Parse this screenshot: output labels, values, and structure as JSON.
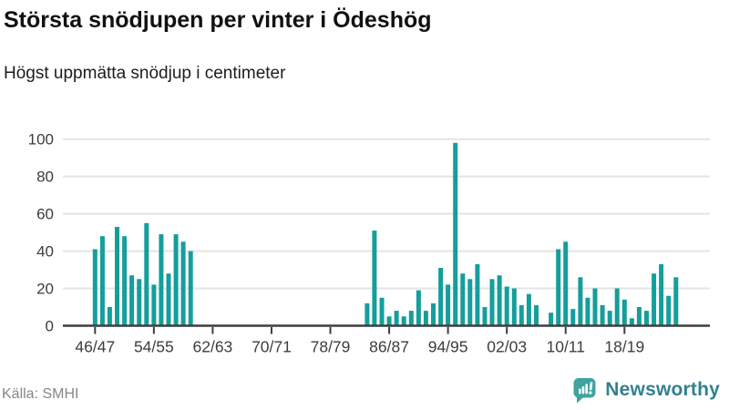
{
  "header": {
    "title": "Största snödjupen per vinter i Ödeshög",
    "subtitle": "Högst uppmätta snödjup i centimeter"
  },
  "footer": {
    "source": "Källa: SMHI",
    "brand": "Newsworthy"
  },
  "icons": {
    "logo_icon": "chart-speech-bubble-icon"
  },
  "colors": {
    "bar": "#149e9c",
    "grid": "#e4e4e4",
    "axis": "#3d3d3d",
    "axis_text": "#3d3d3d",
    "title_text": "#111111",
    "source_text": "#878787",
    "brand_text": "#33808f",
    "logo_icon": "#3fa4a0"
  },
  "chart_data": {
    "type": "bar",
    "title": "Största snödjupen per vinter i Ödeshög",
    "subtitle": "Högst uppmätta snödjup i centimeter",
    "unit": "cm",
    "ylabel": "",
    "xlabel": "",
    "ylim": [
      0,
      100
    ],
    "yticks": [
      0,
      20,
      40,
      60,
      80,
      100
    ],
    "xtick_labels": [
      "46/47",
      "54/55",
      "62/63",
      "70/71",
      "78/79",
      "86/87",
      "94/95",
      "02/03",
      "10/11",
      "18/19"
    ],
    "xtick_every": 8,
    "grid": true,
    "legend": "none",
    "categories": [
      "46/47",
      "47/48",
      "48/49",
      "49/50",
      "50/51",
      "51/52",
      "52/53",
      "53/54",
      "54/55",
      "55/56",
      "56/57",
      "57/58",
      "58/59",
      "59/60",
      "60/61",
      "61/62",
      "62/63",
      "63/64",
      "64/65",
      "65/66",
      "66/67",
      "67/68",
      "68/69",
      "69/70",
      "70/71",
      "71/72",
      "72/73",
      "73/74",
      "74/75",
      "75/76",
      "76/77",
      "77/78",
      "78/79",
      "79/80",
      "80/81",
      "81/82",
      "82/83",
      "83/84",
      "84/85",
      "85/86",
      "86/87",
      "87/88",
      "88/89",
      "89/90",
      "90/91",
      "91/92",
      "92/93",
      "93/94",
      "94/95",
      "95/96",
      "96/97",
      "97/98",
      "98/99",
      "99/00",
      "00/01",
      "01/02",
      "02/03",
      "03/04",
      "04/05",
      "05/06",
      "06/07",
      "07/08",
      "08/09",
      "09/10",
      "10/11",
      "11/12",
      "12/13",
      "13/14",
      "14/15",
      "15/16",
      "16/17",
      "17/18",
      "18/19",
      "19/20",
      "20/21",
      "21/22",
      "22/23",
      "23/24",
      "24/25",
      "25/26"
    ],
    "values": [
      41,
      48,
      10,
      53,
      48,
      27,
      25,
      55,
      22,
      49,
      28,
      49,
      45,
      40,
      null,
      null,
      null,
      null,
      null,
      null,
      null,
      null,
      null,
      null,
      null,
      null,
      null,
      null,
      null,
      null,
      null,
      null,
      null,
      null,
      null,
      null,
      null,
      12,
      51,
      15,
      5,
      8,
      5,
      8,
      19,
      8,
      12,
      31,
      22,
      98,
      28,
      25,
      33,
      10,
      25,
      27,
      21,
      20,
      11,
      17,
      11,
      null,
      7,
      41,
      45,
      9,
      26,
      15,
      20,
      11,
      8,
      20,
      14,
      4,
      10,
      8,
      28,
      33,
      16,
      26
    ]
  }
}
